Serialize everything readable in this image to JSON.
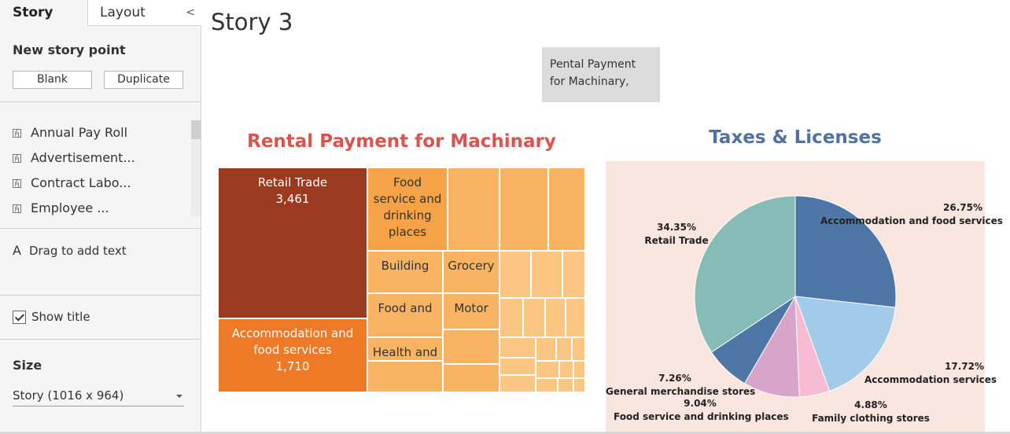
{
  "sidebar": {
    "tabs": {
      "story": "Story",
      "layout": "Layout",
      "collapse": "<"
    },
    "new_story_point": {
      "title": "New story point",
      "blank": "Blank",
      "duplicate": "Duplicate"
    },
    "sheets": [
      "Annual Pay Roll",
      "Advertisement...",
      "Contract Labo...",
      "Employee ..."
    ],
    "drag_icon": "A",
    "drag_text": "Drag to add text",
    "show_title": {
      "label": "Show title",
      "checked": true
    },
    "size": {
      "title": "Size",
      "value": "Story (1016 x 964)"
    }
  },
  "story": {
    "title": "Story 3",
    "caption": "Pental Payment for Machinary,"
  },
  "treemap": {
    "title": "Rental Payment for Machinary",
    "labeled_cells": [
      {
        "name": "Retail Trade",
        "value": "3,461"
      },
      {
        "name": "Accommodation and food services",
        "value": "1,710"
      },
      {
        "name": "Food service and drinking places",
        "value": ""
      },
      {
        "name": "Building",
        "value": ""
      },
      {
        "name": "Grocery",
        "value": ""
      },
      {
        "name": "Food and",
        "value": ""
      },
      {
        "name": "Motor",
        "value": ""
      },
      {
        "name": "Health and",
        "value": ""
      }
    ],
    "colors": {
      "darkest": "#9c3a20",
      "dark": "#ee7a27",
      "mid": "#f5a346",
      "light": "#f8b463",
      "lightest": "#fbc582"
    }
  },
  "chart_data": {
    "type": "pie",
    "title": "Taxes & Licenses",
    "slices": [
      {
        "label": "Accommodation and food services",
        "percent": 26.75,
        "display": "26.75%",
        "color": "#4e76a6"
      },
      {
        "label": "Accommodation services",
        "percent": 17.72,
        "display": "17.72%",
        "color": "#a1cbe9"
      },
      {
        "label": "Family clothing stores",
        "percent": 4.88,
        "display": "4.88%",
        "color": "#f7bcd2"
      },
      {
        "label": "Food service and drinking places",
        "percent": 9.04,
        "display": "9.04%",
        "color": "#d6a5c9"
      },
      {
        "label": "General merchandise stores",
        "percent": 7.26,
        "display": "7.26%",
        "color": "#4e76a6"
      },
      {
        "label": "Retail Trade",
        "percent": 34.35,
        "display": "34.35%",
        "color": "#86bcb5"
      }
    ]
  }
}
